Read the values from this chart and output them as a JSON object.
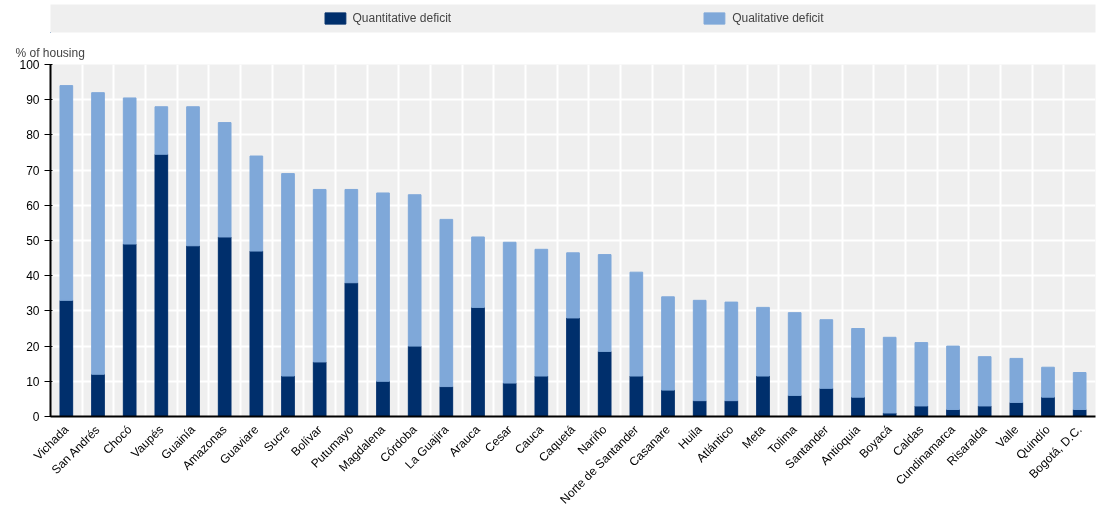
{
  "chart_data": {
    "type": "bar",
    "stacked": true,
    "ylabel": "% of housing",
    "categories": [
      "Vichada",
      "San Andrés",
      "Chocó",
      "Vaupés",
      "Guainía",
      "Amazonas",
      "Guaviare",
      "Sucre",
      "Bolívar",
      "Putumayo",
      "Magdalena",
      "Córdoba",
      "La Guajira",
      "Arauca",
      "Cesar",
      "Cauca",
      "Caquetá",
      "Nariño",
      "Norte de Santander",
      "Casanare",
      "Huila",
      "Atlántico",
      "Meta",
      "Tolima",
      "Santander",
      "Antioquia",
      "Boyacá",
      "Caldas",
      "Cundinamarca",
      "Risaralda",
      "Valle",
      "Quindío",
      "Bogotá, D.C."
    ],
    "series": [
      {
        "name": "Quantitative deficit",
        "color": "#002f6c",
        "values": [
          33,
          12,
          49,
          74.5,
          48.5,
          51,
          47,
          11.5,
          15.5,
          38,
          10,
          20,
          8.5,
          31,
          9.5,
          11.5,
          28,
          18.5,
          11.5,
          7.5,
          4.5,
          4.5,
          11.5,
          6,
          8,
          5.5,
          1,
          3,
          2,
          3,
          4,
          5.5,
          2
        ]
      },
      {
        "name": "Qualitative deficit",
        "color": "#7fa8d9",
        "values": [
          61,
          80,
          41.5,
          13.5,
          39.5,
          32.5,
          27,
          57.5,
          49,
          26.5,
          53.5,
          43,
          47.5,
          20,
          40,
          36,
          18.5,
          27.5,
          29.5,
          26.5,
          28.5,
          28,
          19.5,
          23.5,
          19.5,
          19.5,
          21.5,
          18,
          18,
          14,
          12.5,
          8.5,
          10.5
        ]
      }
    ],
    "ylim": [
      0,
      100
    ],
    "yticks": [
      0,
      10,
      20,
      30,
      40,
      50,
      60,
      70,
      80,
      90,
      100
    ],
    "grid": true,
    "legend": "top"
  }
}
